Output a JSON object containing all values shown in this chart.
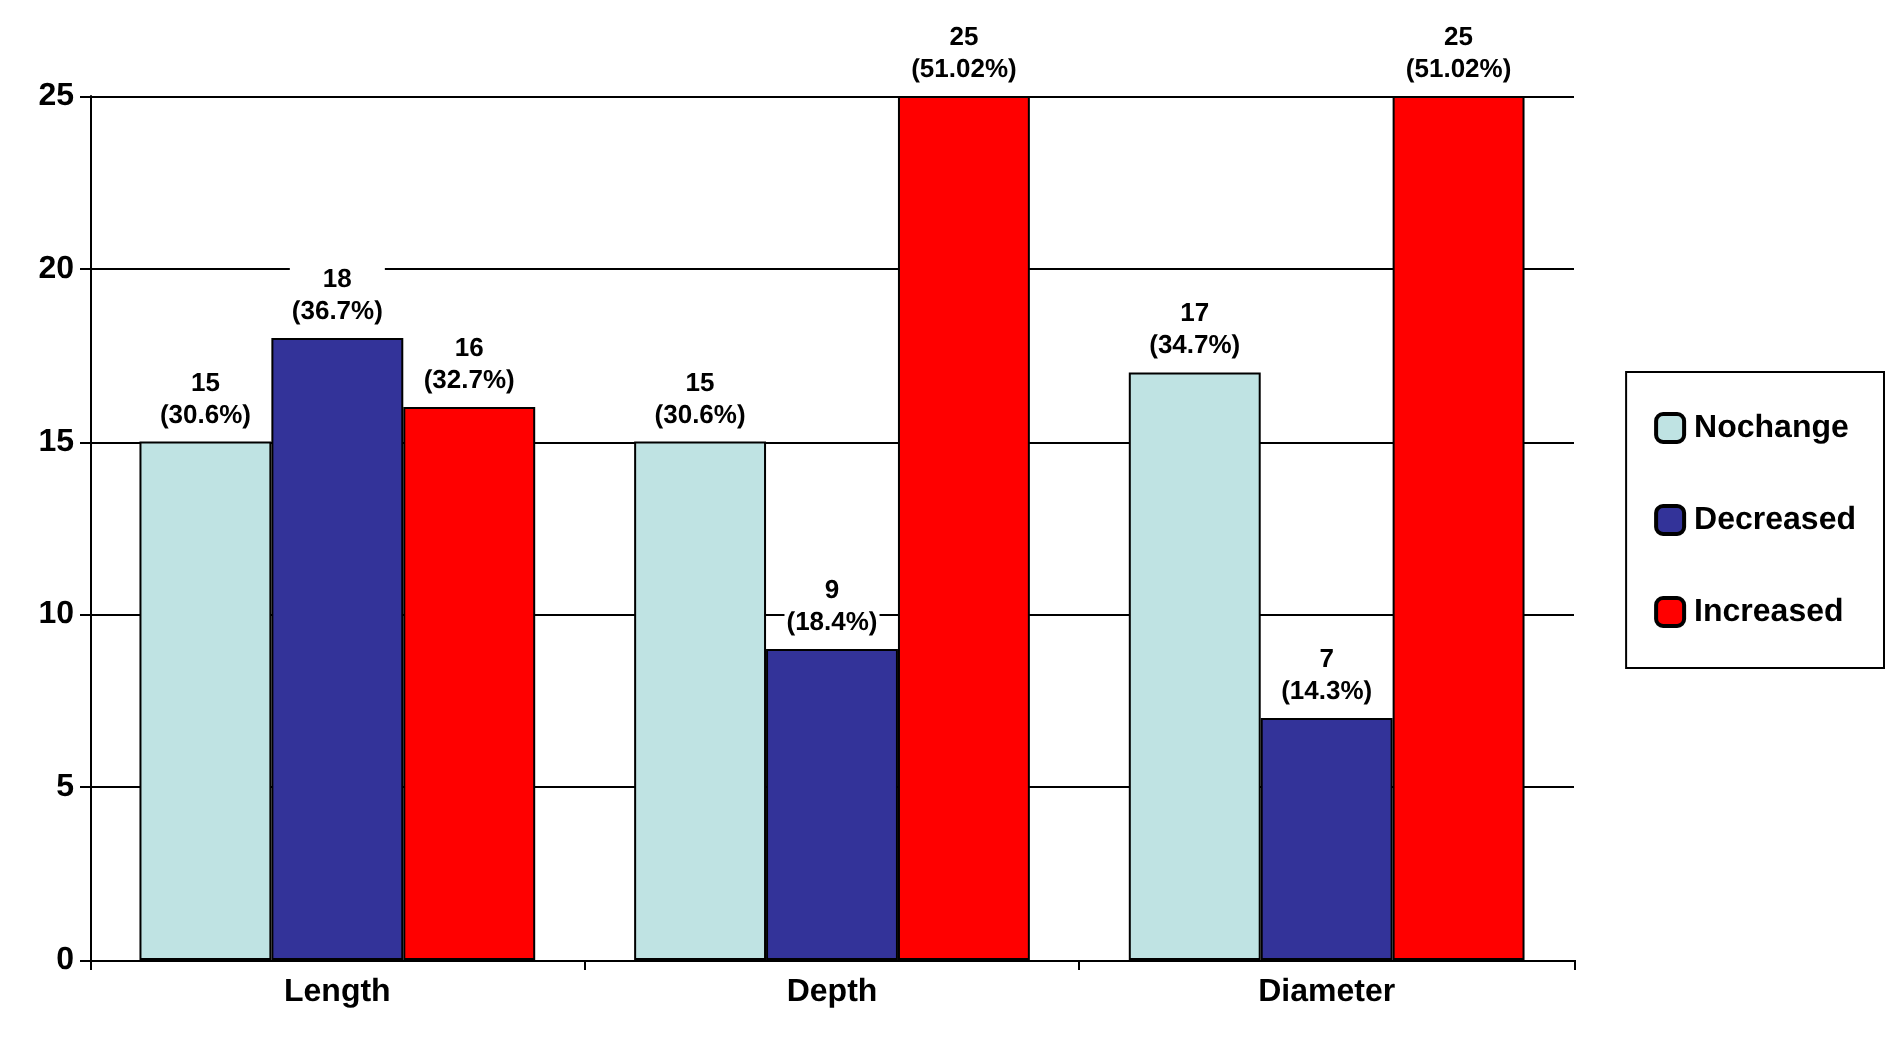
{
  "chart_data": {
    "type": "bar",
    "categories": [
      "Length",
      "Depth",
      "Diameter"
    ],
    "series": [
      {
        "name": "Nochange",
        "color": "#bfe3e3",
        "values": [
          15,
          15,
          17
        ],
        "value_labels": [
          "15\n(30.6%)",
          "15\n(30.6%)",
          "17\n(34.7%)"
        ]
      },
      {
        "name": "Decreased",
        "color": "#333399",
        "values": [
          18,
          9,
          7
        ],
        "value_labels": [
          "18\n(36.7%)",
          "9\n(18.4%)",
          "7\n(14.3%)"
        ]
      },
      {
        "name": "Increased",
        "color": "#ff0000",
        "values": [
          16,
          25,
          25
        ],
        "value_labels": [
          "16\n(32.7%)",
          "25\n(51.02%)",
          "25\n(51.02%)"
        ]
      }
    ],
    "ylim": [
      0,
      25
    ],
    "yticks": [
      0,
      5,
      10,
      15,
      20,
      25
    ],
    "grid": "y",
    "legend": "right"
  }
}
